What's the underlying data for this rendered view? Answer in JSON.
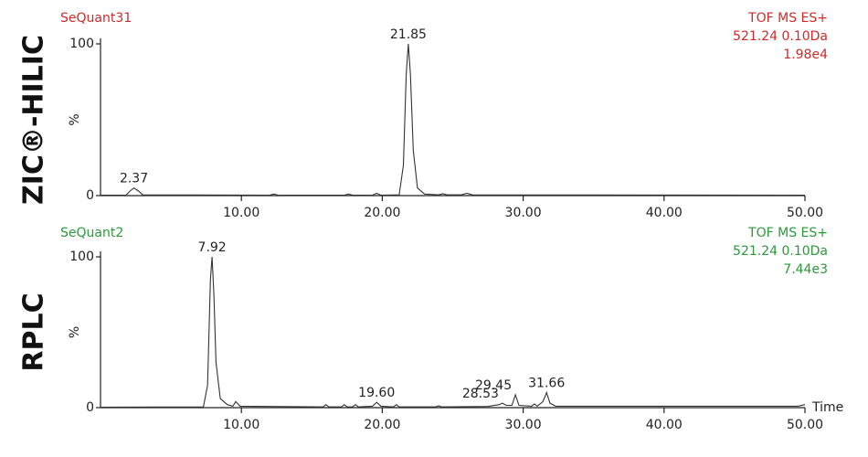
{
  "chart_data": [
    {
      "type": "line",
      "side_label": "ZIC®-HILIC",
      "title": "SeQuant31",
      "info": [
        "TOF MS ES+",
        "521.24 0.10Da",
        "1.98e4"
      ],
      "text_color": "#d02a2a",
      "line_color": "#333333",
      "ylabel": "%",
      "x": [
        0,
        1.8,
        2.1,
        2.37,
        2.7,
        3.0,
        12,
        12.3,
        12.6,
        17.3,
        17.6,
        17.9,
        19.3,
        19.6,
        19.9,
        21.2,
        21.5,
        21.7,
        21.85,
        22.0,
        22.2,
        22.5,
        23,
        24,
        24.3,
        24.6,
        25.6,
        26,
        26.4,
        50
      ],
      "values": [
        0.3,
        0.3,
        3,
        5,
        3,
        0.5,
        0.3,
        1,
        0.3,
        0.3,
        1,
        0.3,
        0.3,
        1.5,
        0.3,
        0.5,
        20,
        80,
        100,
        80,
        30,
        5,
        1,
        0.5,
        1.2,
        0.5,
        0.5,
        1.5,
        0.5,
        0.3
      ],
      "annotations": [
        {
          "x": 2.37,
          "y": 5,
          "label": "2.37"
        },
        {
          "x": 21.85,
          "y": 100,
          "label": "21.85"
        }
      ],
      "xlim": [
        0,
        50
      ],
      "ylim": [
        0,
        100
      ],
      "yticks": [
        0,
        100
      ],
      "xticks": [
        {
          "value": 10,
          "label": "10.00"
        },
        {
          "value": 20,
          "label": "20.00"
        },
        {
          "value": 30,
          "label": "30.00"
        },
        {
          "value": 40,
          "label": "40.00"
        },
        {
          "value": 50,
          "label": "50.00"
        }
      ]
    },
    {
      "type": "line",
      "side_label": "RPLC",
      "title": "SeQuant2",
      "info": [
        "TOF MS ES+",
        "521.24 0.10Da",
        "7.44e3"
      ],
      "text_color": "#2a9a3a",
      "line_color": "#333333",
      "ylabel": "%",
      "xlabel": "Time",
      "x": [
        0,
        7.3,
        7.6,
        7.8,
        7.92,
        8.05,
        8.2,
        8.5,
        9,
        9.4,
        9.6,
        9.9,
        15.8,
        16,
        16.2,
        17.1,
        17.3,
        17.5,
        17.9,
        18.1,
        18.3,
        19.3,
        19.6,
        19.9,
        20.8,
        21,
        21.2,
        23.8,
        24,
        24.2,
        27.5,
        28.3,
        28.53,
        28.8,
        29.2,
        29.45,
        29.7,
        30.6,
        30.8,
        31,
        31.4,
        31.66,
        31.9,
        32.3,
        49.5,
        50
      ],
      "values": [
        0.3,
        0.5,
        15,
        85,
        100,
        75,
        30,
        6,
        2,
        1,
        4,
        1,
        0.5,
        2,
        0.5,
        0.5,
        2,
        0.5,
        0.5,
        2,
        0.5,
        1,
        3.5,
        1,
        0.5,
        2,
        0.5,
        0.5,
        1.2,
        0.5,
        0.8,
        2,
        3,
        1.5,
        1.5,
        8.5,
        1.5,
        1,
        2.5,
        1,
        4,
        10,
        3,
        1,
        1,
        2
      ],
      "annotations": [
        {
          "x": 7.92,
          "y": 100,
          "label": "7.92"
        },
        {
          "x": 19.6,
          "y": 3.5,
          "label": "19.60"
        },
        {
          "x": 28.53,
          "y": 3,
          "label": "28.53"
        },
        {
          "x": 29.45,
          "y": 8.5,
          "label": "29.45"
        },
        {
          "x": 31.66,
          "y": 10,
          "label": "31.66"
        }
      ],
      "xlim": [
        0,
        50
      ],
      "ylim": [
        0,
        100
      ],
      "yticks": [
        0,
        100
      ],
      "xticks": [
        {
          "value": 10,
          "label": "10.00"
        },
        {
          "value": 20,
          "label": "20.00"
        },
        {
          "value": 30,
          "label": "30.00"
        },
        {
          "value": 40,
          "label": "40.00"
        },
        {
          "value": 50,
          "label": "50.00"
        }
      ]
    }
  ]
}
